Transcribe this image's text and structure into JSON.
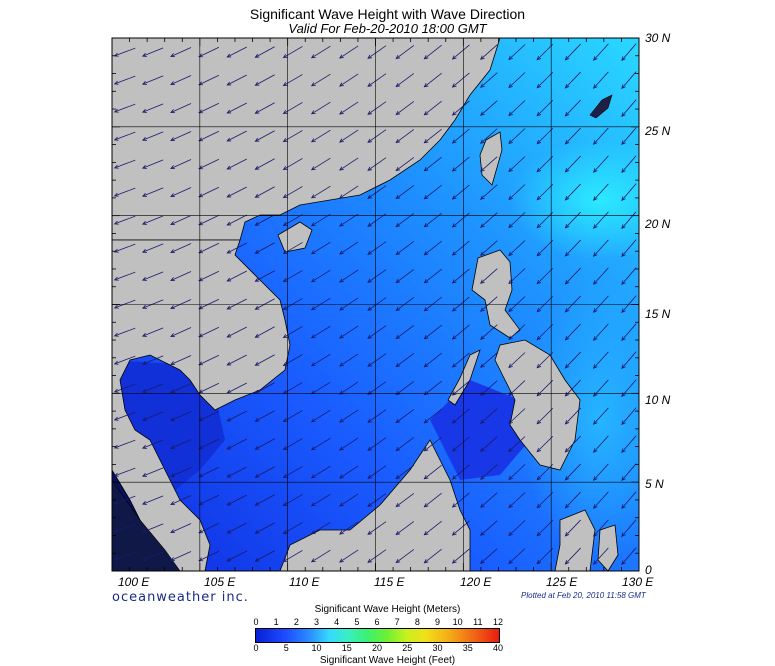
{
  "title": "Significant Wave Height with Wave Direction",
  "subtitle": "Valid For Feb-20-2010 18:00 GMT",
  "lat_labels": [
    "30 N",
    "25 N",
    "20 N",
    "15 N",
    "10 N",
    "5 N",
    "0"
  ],
  "lon_labels": [
    "100 E",
    "105 E",
    "110 E",
    "115 E",
    "120 E",
    "125 E",
    "130 E"
  ],
  "branding": "oceanweather inc.",
  "plotted": "Plotted at Feb 20, 2010 11:58 GMT",
  "legend": {
    "title_top": "Significant Wave Height (Meters)",
    "title_bottom": "Significant Wave Height (Feet)",
    "meters": [
      "0",
      "1",
      "2",
      "3",
      "4",
      "5",
      "6",
      "7",
      "8",
      "9",
      "10",
      "11",
      "12"
    ],
    "feet": [
      "0",
      "5",
      "10",
      "15",
      "20",
      "25",
      "30",
      "35",
      "40"
    ]
  },
  "colors": {
    "land": "#c0c0c0",
    "sea_low": "#1434e8",
    "sea_mid": "#1e6cff",
    "sea_high": "#28c8ff",
    "arrow": "#1a1a6a"
  }
}
